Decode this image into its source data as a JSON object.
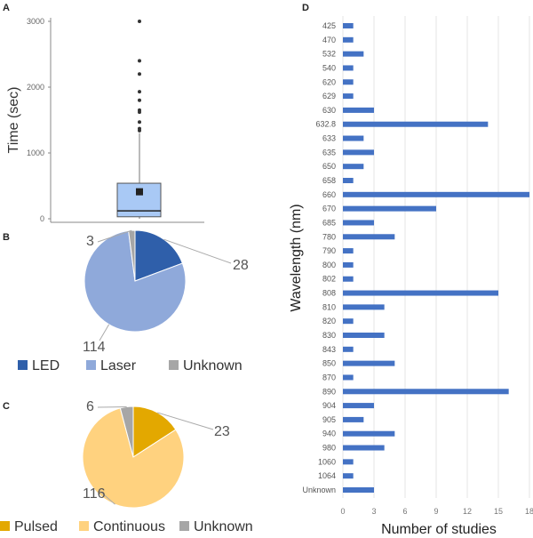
{
  "chart_data": [
    {
      "panel": "A",
      "type": "box",
      "ylabel": "Time (sec)",
      "yticks": [
        0,
        1000,
        2000,
        3000
      ],
      "ylim": [
        -50,
        3100
      ],
      "box": {
        "whisker_low": 0,
        "q1": 30,
        "median": 120,
        "q3": 540,
        "whisker_high": 1300,
        "mean": 410
      },
      "outliers": [
        1340,
        1370,
        1470,
        1620,
        1650,
        1800,
        1930,
        2200,
        2400,
        3000
      ],
      "color": "#a9c9f5"
    },
    {
      "panel": "B",
      "type": "pie",
      "categories": [
        "LED",
        "Laser",
        "Unknown"
      ],
      "values": [
        28,
        114,
        3
      ],
      "labels": [
        "28",
        "114",
        "3"
      ],
      "colors": [
        "#2f5faa",
        "#8fa9da",
        "#a6a6a6"
      ],
      "legend": "bottom"
    },
    {
      "panel": "C",
      "type": "pie",
      "categories": [
        "Pulsed",
        "Continuous",
        "Unknown"
      ],
      "values": [
        23,
        116,
        6
      ],
      "labels": [
        "23",
        "116",
        "6"
      ],
      "colors": [
        "#e3a800",
        "#ffd27f",
        "#a6a6a6"
      ],
      "legend": "bottom"
    },
    {
      "panel": "D",
      "type": "bar",
      "orientation": "horizontal",
      "xlabel": "Number of studies",
      "ylabel": "Wavelength (nm)",
      "xlim": [
        0,
        18
      ],
      "xticks": [
        0,
        3,
        6,
        9,
        12,
        15,
        18
      ],
      "grid": true,
      "color": "#4472c4",
      "categories": [
        "425",
        "470",
        "532",
        "540",
        "620",
        "629",
        "630",
        "632.8",
        "633",
        "635",
        "650",
        "658",
        "660",
        "670",
        "685",
        "780",
        "790",
        "800",
        "802",
        "808",
        "810",
        "820",
        "830",
        "843",
        "850",
        "870",
        "890",
        "904",
        "905",
        "940",
        "980",
        "1060",
        "1064",
        "Unknown"
      ],
      "values": [
        1,
        1,
        2,
        1,
        1,
        1,
        3,
        14,
        2,
        3,
        2,
        1,
        18,
        9,
        3,
        5,
        1,
        1,
        1,
        15,
        4,
        1,
        4,
        1,
        5,
        1,
        16,
        3,
        2,
        5,
        4,
        1,
        1,
        3
      ]
    }
  ]
}
